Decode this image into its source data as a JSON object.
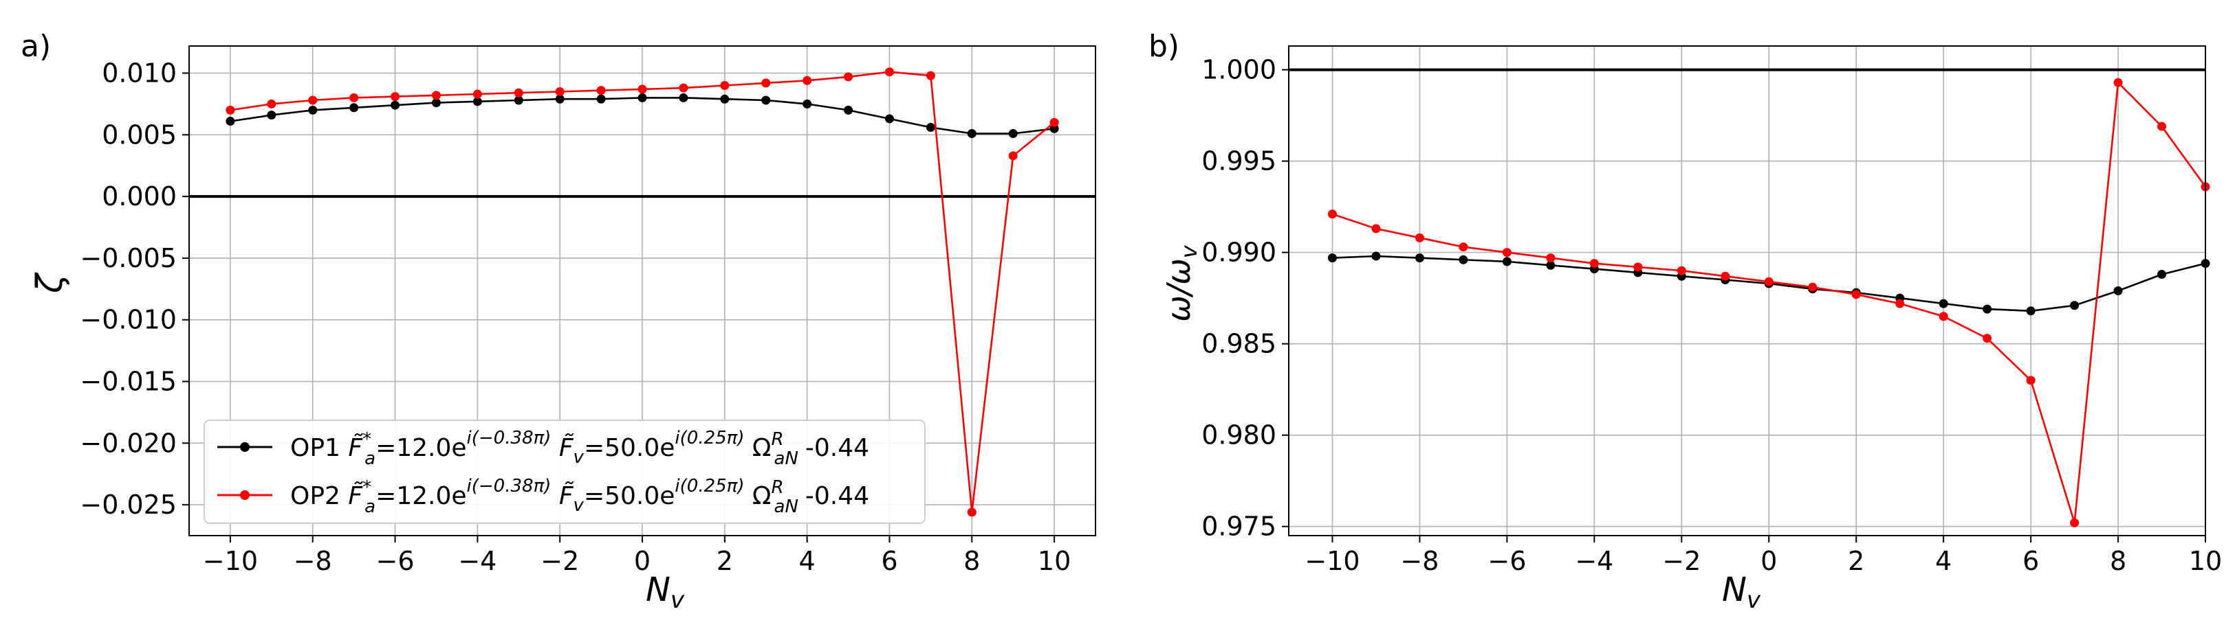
{
  "figure": {
    "panel_a_label": "a)",
    "panel_b_label": "b)"
  },
  "chart_data": [
    {
      "type": "line",
      "panel": "a)",
      "xlabel": "N_v",
      "ylabel": "ζ",
      "xlim": [
        -11,
        11
      ],
      "ylim": [
        -0.0275,
        0.0122
      ],
      "xticks": [
        -10,
        -8,
        -6,
        -4,
        -2,
        0,
        2,
        4,
        6,
        8,
        10
      ],
      "xtick_labels": [
        "−10",
        "−8",
        "−6",
        "−4",
        "−2",
        "0",
        "2",
        "4",
        "6",
        "8",
        "10"
      ],
      "yticks": [
        0.01,
        0.005,
        0.0,
        -0.005,
        -0.01,
        -0.015,
        -0.02,
        -0.025
      ],
      "ytick_labels": [
        "0.010",
        "0.005",
        "0.000",
        "−0.005",
        "−0.010",
        "−0.015",
        "−0.020",
        "−0.025"
      ],
      "grid": true,
      "hline": 0.0,
      "legend_position": "lower-left",
      "x": [
        -10,
        -9,
        -8,
        -7,
        -6,
        -5,
        -4,
        -3,
        -2,
        -1,
        0,
        1,
        2,
        3,
        4,
        5,
        6,
        7,
        8,
        9,
        10
      ],
      "series": [
        {
          "name": "OP1",
          "legend_prefix": "OP1",
          "color": "#000000",
          "values": [
            0.0061,
            0.0066,
            0.007,
            0.0072,
            0.0074,
            0.0076,
            0.0077,
            0.0078,
            0.0079,
            0.0079,
            0.008,
            0.008,
            0.0079,
            0.0078,
            0.0075,
            0.007,
            0.0063,
            0.0056,
            0.0051,
            0.0051,
            0.0055
          ]
        },
        {
          "name": "OP2",
          "legend_prefix": "OP2",
          "color": "#ff0000",
          "values": [
            0.007,
            0.0075,
            0.0078,
            0.008,
            0.0081,
            0.0082,
            0.0083,
            0.0084,
            0.0085,
            0.0086,
            0.0087,
            0.0088,
            0.009,
            0.0092,
            0.0094,
            0.0097,
            0.0101,
            0.0098,
            -0.0256,
            0.0033,
            0.006
          ]
        }
      ],
      "legend_params": {
        "Fa_sym": "F̃",
        "Fa_sup": "*",
        "Fa_sub": "a",
        "Fa_val": "=12.0e",
        "Fa_exp": "i(−0.38π)",
        "Fv_sym": "F̃",
        "Fv_sub": "v",
        "Fv_val": "=50.0e",
        "Fv_exp": "i(0.25π)",
        "Om_sym": "Ω",
        "Om_sup": "R",
        "Om_sub": "aN",
        "Om_val": "-0.44"
      }
    },
    {
      "type": "line",
      "panel": "b)",
      "xlabel": "N_v",
      "ylabel": "ω/ω_v",
      "xlim": [
        -11,
        10
      ],
      "ylim": [
        0.9745,
        1.0013
      ],
      "xticks": [
        -10,
        -8,
        -6,
        -4,
        -2,
        0,
        2,
        4,
        6,
        8,
        10
      ],
      "xtick_labels": [
        "−10",
        "−8",
        "−6",
        "−4",
        "−2",
        "0",
        "2",
        "4",
        "6",
        "8",
        "10"
      ],
      "yticks": [
        1.0,
        0.995,
        0.99,
        0.985,
        0.98,
        0.975
      ],
      "ytick_labels": [
        "1.000",
        "0.995",
        "0.990",
        "0.985",
        "0.980",
        "0.975"
      ],
      "grid": true,
      "hline": 1.0,
      "x": [
        -10,
        -9,
        -8,
        -7,
        -6,
        -5,
        -4,
        -3,
        -2,
        -1,
        0,
        1,
        2,
        3,
        4,
        5,
        6,
        7,
        8,
        9,
        10
      ],
      "series": [
        {
          "name": "OP1",
          "color": "#000000",
          "values": [
            0.9897,
            0.9898,
            0.9897,
            0.9896,
            0.9895,
            0.9893,
            0.9891,
            0.9889,
            0.9887,
            0.9885,
            0.9883,
            0.988,
            0.9878,
            0.9875,
            0.9872,
            0.9869,
            0.9868,
            0.9871,
            0.9879,
            0.9888,
            0.9894
          ]
        },
        {
          "name": "OP2",
          "color": "#ff0000",
          "values": [
            0.9921,
            0.9913,
            0.9908,
            0.9903,
            0.99,
            0.9897,
            0.9894,
            0.9892,
            0.989,
            0.9887,
            0.9884,
            0.9881,
            0.9877,
            0.9872,
            0.9865,
            0.9853,
            0.983,
            0.9752,
            0.9993,
            0.9969,
            0.9936
          ]
        }
      ]
    }
  ]
}
